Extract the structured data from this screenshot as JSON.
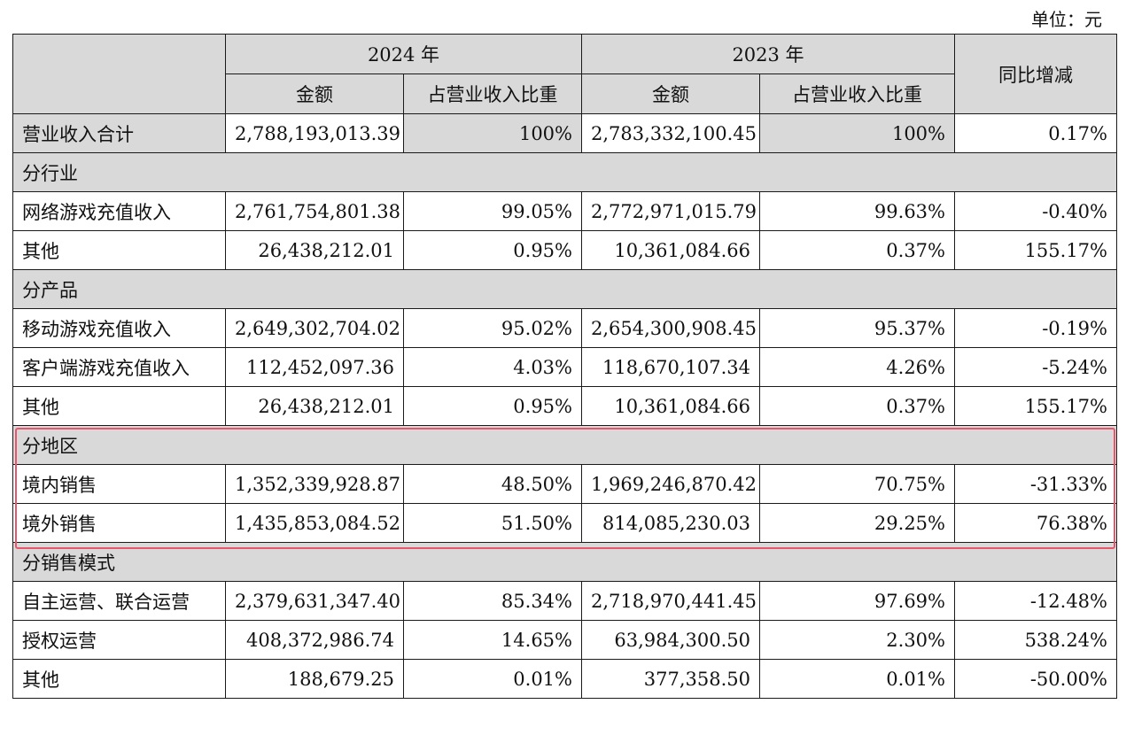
{
  "unit_label": "单位：元",
  "header": {
    "year_2024": "2024 年",
    "year_2023": "2023 年",
    "amount": "金额",
    "share": "占营业收入比重",
    "yoy": "同比增减"
  },
  "total": {
    "label": "营业收入合计",
    "a2024": "2,788,193,013.39",
    "s2024": "100%",
    "a2023": "2,783,332,100.45",
    "s2023": "100%",
    "yoy": "0.17%"
  },
  "by_industry": {
    "title": "分行业",
    "rows": [
      {
        "label": "网络游戏充值收入",
        "a2024": "2,761,754,801.38",
        "s2024": "99.05%",
        "a2023": "2,772,971,015.79",
        "s2023": "99.63%",
        "yoy": "-0.40%"
      },
      {
        "label": "其他",
        "a2024": "26,438,212.01",
        "s2024": "0.95%",
        "a2023": "10,361,084.66",
        "s2023": "0.37%",
        "yoy": "155.17%"
      }
    ]
  },
  "by_product": {
    "title": "分产品",
    "rows": [
      {
        "label": "移动游戏充值收入",
        "a2024": "2,649,302,704.02",
        "s2024": "95.02%",
        "a2023": "2,654,300,908.45",
        "s2023": "95.37%",
        "yoy": "-0.19%"
      },
      {
        "label": "客户端游戏充值收入",
        "a2024": "112,452,097.36",
        "s2024": "4.03%",
        "a2023": "118,670,107.34",
        "s2023": "4.26%",
        "yoy": "-5.24%"
      },
      {
        "label": "其他",
        "a2024": "26,438,212.01",
        "s2024": "0.95%",
        "a2023": "10,361,084.66",
        "s2023": "0.37%",
        "yoy": "155.17%"
      }
    ]
  },
  "by_region": {
    "title": "分地区",
    "rows": [
      {
        "label": "境内销售",
        "a2024": "1,352,339,928.87",
        "s2024": "48.50%",
        "a2023": "1,969,246,870.42",
        "s2023": "70.75%",
        "yoy": "-31.33%"
      },
      {
        "label": "境外销售",
        "a2024": "1,435,853,084.52",
        "s2024": "51.50%",
        "a2023": "814,085,230.03",
        "s2023": "29.25%",
        "yoy": "76.38%"
      }
    ]
  },
  "by_sales_model": {
    "title": "分销售模式",
    "rows": [
      {
        "label": "自主运营、联合运营",
        "a2024": "2,379,631,347.40",
        "s2024": "85.34%",
        "a2023": "2,718,970,441.45",
        "s2023": "97.69%",
        "yoy": "-12.48%"
      },
      {
        "label": "授权运营",
        "a2024": "408,372,986.74",
        "s2024": "14.65%",
        "a2023": "63,984,300.50",
        "s2023": "2.30%",
        "yoy": "538.24%"
      },
      {
        "label": "其他",
        "a2024": "188,679.25",
        "s2024": "0.01%",
        "a2023": "377,358.50",
        "s2023": "0.01%",
        "yoy": "-50.00%"
      }
    ]
  },
  "colors": {
    "header_fill": "#d9d9d9",
    "highlight_border": "#e8566b"
  }
}
